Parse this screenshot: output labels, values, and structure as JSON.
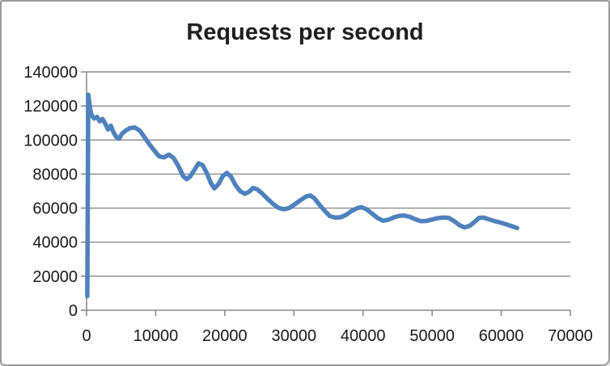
{
  "colors": {
    "series_blue": "#4F81BD",
    "gridline_grey": "#8A8A8A",
    "axis_text": "#1A1A1A",
    "title_text": "#1F1F1F",
    "frame_border": "#9A9A9A",
    "background": "#FFFFFF"
  },
  "chart_data": {
    "type": "line",
    "title": "Requests per second",
    "xlabel": "",
    "ylabel": "",
    "legend": "none",
    "grid": "horizontal",
    "x_axis": {
      "min": 0,
      "max": 70000,
      "tick_interval": 10000,
      "tick_labels": [
        "0",
        "10000",
        "20000",
        "30000",
        "40000",
        "50000",
        "60000",
        "70000"
      ]
    },
    "y_axis": {
      "min": 0,
      "max": 140000,
      "tick_interval": 20000,
      "tick_labels": [
        "0",
        "20000",
        "40000",
        "60000",
        "80000",
        "100000",
        "120000",
        "140000"
      ]
    },
    "series": [
      {
        "name": "Requests per second",
        "color": "#4F81BD",
        "stroke_width": 5.5,
        "points": [
          [
            100,
            8300
          ],
          [
            250,
            126600
          ],
          [
            500,
            118500
          ],
          [
            700,
            114800
          ],
          [
            1100,
            112600
          ],
          [
            1500,
            113600
          ],
          [
            1900,
            111000
          ],
          [
            2300,
            112400
          ],
          [
            2700,
            109600
          ],
          [
            3100,
            106200
          ],
          [
            3500,
            108400
          ],
          [
            3900,
            104600
          ],
          [
            4300,
            101800
          ],
          [
            4700,
            100800
          ],
          [
            5100,
            103600
          ],
          [
            5700,
            105700
          ],
          [
            6300,
            107000
          ],
          [
            7000,
            107300
          ],
          [
            7700,
            105500
          ],
          [
            8400,
            101500
          ],
          [
            9100,
            97500
          ],
          [
            9800,
            93800
          ],
          [
            10500,
            90400
          ],
          [
            11200,
            89800
          ],
          [
            11900,
            91400
          ],
          [
            12600,
            89400
          ],
          [
            13300,
            84600
          ],
          [
            14000,
            78600
          ],
          [
            14500,
            77000
          ],
          [
            15000,
            78600
          ],
          [
            15600,
            82400
          ],
          [
            16200,
            86300
          ],
          [
            16800,
            85200
          ],
          [
            17400,
            80600
          ],
          [
            18000,
            74600
          ],
          [
            18500,
            71600
          ],
          [
            19100,
            74200
          ],
          [
            19700,
            78800
          ],
          [
            20300,
            80700
          ],
          [
            20900,
            78600
          ],
          [
            21500,
            73800
          ],
          [
            22200,
            70000
          ],
          [
            22900,
            68400
          ],
          [
            23500,
            69600
          ],
          [
            24100,
            71800
          ],
          [
            24700,
            71000
          ],
          [
            25400,
            68600
          ],
          [
            26200,
            65400
          ],
          [
            27000,
            62400
          ],
          [
            27800,
            60100
          ],
          [
            28500,
            59300
          ],
          [
            29300,
            60000
          ],
          [
            30100,
            62100
          ],
          [
            31000,
            64800
          ],
          [
            31800,
            66900
          ],
          [
            32400,
            67400
          ],
          [
            33000,
            65600
          ],
          [
            33700,
            62000
          ],
          [
            34400,
            58600
          ],
          [
            35200,
            55300
          ],
          [
            36000,
            54400
          ],
          [
            36800,
            54600
          ],
          [
            37600,
            56200
          ],
          [
            38400,
            58400
          ],
          [
            39200,
            60100
          ],
          [
            39800,
            60500
          ],
          [
            40500,
            59300
          ],
          [
            41300,
            56800
          ],
          [
            42100,
            54200
          ],
          [
            42900,
            52600
          ],
          [
            43700,
            53200
          ],
          [
            44500,
            54600
          ],
          [
            45300,
            55500
          ],
          [
            46000,
            55600
          ],
          [
            46800,
            54800
          ],
          [
            47600,
            53400
          ],
          [
            48400,
            52300
          ],
          [
            49200,
            52500
          ],
          [
            50000,
            53300
          ],
          [
            50800,
            54100
          ],
          [
            51600,
            54500
          ],
          [
            52400,
            54300
          ],
          [
            53200,
            52300
          ],
          [
            54000,
            49900
          ],
          [
            54700,
            48700
          ],
          [
            55400,
            49500
          ],
          [
            56100,
            51800
          ],
          [
            56800,
            54300
          ],
          [
            57500,
            54400
          ],
          [
            58300,
            53300
          ],
          [
            59100,
            52300
          ],
          [
            59900,
            51500
          ],
          [
            60700,
            50500
          ],
          [
            61500,
            49400
          ],
          [
            62300,
            48300
          ]
        ]
      }
    ]
  }
}
